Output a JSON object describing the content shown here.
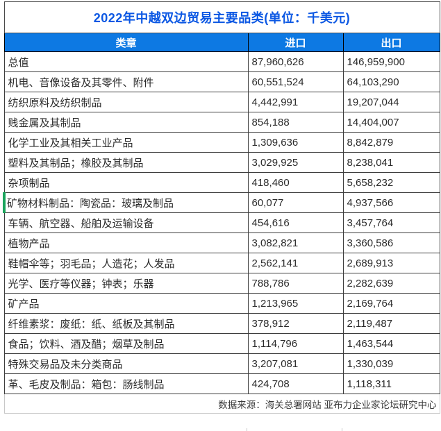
{
  "title": "2022年中越双边贸易主要品类(单位：千美元)",
  "columns": {
    "category": "类章",
    "import": "进口",
    "export": "出口"
  },
  "footer": "数据来源：海关总署网站 亚布力企业家论坛研究中心",
  "colors": {
    "title_text": "#0b57e3",
    "header_bg": "#0d79e3",
    "header_text": "#ffffff",
    "grid_border": "#3d3d3d",
    "marker_green": "#1aa45c"
  },
  "rows": [
    {
      "label": "总值",
      "import": "87,960,626",
      "export": "146,959,900",
      "marked": false
    },
    {
      "label": "机电、音像设备及其零件、附件",
      "import": "60,551,524",
      "export": "64,103,290",
      "marked": false
    },
    {
      "label": "纺织原料及纺织制品",
      "import": "4,442,991",
      "export": "19,207,044",
      "marked": false
    },
    {
      "label": "贱金属及其制品",
      "import": "854,188",
      "export": "14,404,007",
      "marked": false
    },
    {
      "label": "化学工业及其相关工业产品",
      "import": "1,309,636",
      "export": "8,842,879",
      "marked": false
    },
    {
      "label": "塑料及其制品；橡胶及其制品",
      "import": "3,029,925",
      "export": "8,238,041",
      "marked": false
    },
    {
      "label": "杂项制品",
      "import": "418,460",
      "export": "5,658,232",
      "marked": false
    },
    {
      "label": "矿物材料制品：陶瓷品：玻璃及制品",
      "import": "60,077",
      "export": "4,937,566",
      "marked": true
    },
    {
      "label": "车辆、航空器、船舶及运输设备",
      "import": "454,616",
      "export": "3,457,764",
      "marked": false
    },
    {
      "label": "植物产品",
      "import": "3,082,821",
      "export": "3,360,586",
      "marked": false
    },
    {
      "label": "鞋帽伞等；羽毛品；人造花；人发品",
      "import": "2,562,141",
      "export": "2,689,913",
      "marked": false
    },
    {
      "label": "光学、医疗等仪器；钟表；乐器",
      "import": "788,786",
      "export": "2,282,639",
      "marked": false
    },
    {
      "label": "矿产品",
      "import": "1,213,965",
      "export": "2,169,764",
      "marked": false
    },
    {
      "label": "纤维素浆：废纸：纸、纸板及其制品",
      "import": "378,912",
      "export": "2,119,487",
      "marked": false
    },
    {
      "label": "食品；饮料、酒及醋；烟草及制品",
      "import": "1,114,796",
      "export": "1,463,544",
      "marked": false
    },
    {
      "label": "特殊交易品及未分类商品",
      "import": "3,207,081",
      "export": "1,330,039",
      "marked": false
    },
    {
      "label": "革、毛皮及制品：箱包：肠线制品",
      "import": "424,708",
      "export": "1,118,311",
      "marked": false
    }
  ],
  "chart_data": {
    "type": "table",
    "title": "2022年中越双边贸易主要品类(单位：千美元)",
    "unit": "千美元",
    "columns": [
      "类章",
      "进口",
      "出口"
    ],
    "categories": [
      "总值",
      "机电、音像设备及其零件、附件",
      "纺织原料及纺织制品",
      "贱金属及其制品",
      "化学工业及其相关工业产品",
      "塑料及其制品；橡胶及其制品",
      "杂项制品",
      "矿物材料制品：陶瓷品：玻璃及制品",
      "车辆、航空器、船舶及运输设备",
      "植物产品",
      "鞋帽伞等；羽毛品；人造花；人发品",
      "光学、医疗等仪器；钟表；乐器",
      "矿产品",
      "纤维素浆：废纸：纸、纸板及其制品",
      "食品；饮料、酒及醋；烟草及制品",
      "特殊交易品及未分类商品",
      "革、毛皮及制品：箱包：肠线制品"
    ],
    "series": [
      {
        "name": "进口",
        "values": [
          87960626,
          60551524,
          4442991,
          854188,
          1309636,
          3029925,
          418460,
          60077,
          454616,
          3082821,
          2562141,
          788786,
          1213965,
          378912,
          1114796,
          3207081,
          424708
        ]
      },
      {
        "name": "出口",
        "values": [
          146959900,
          64103290,
          19207044,
          14404007,
          8842879,
          8238041,
          5658232,
          4937566,
          3457764,
          3360586,
          2689913,
          2282639,
          2169764,
          2119487,
          1463544,
          1330039,
          1118311
        ]
      }
    ],
    "source": "数据来源：海关总署网站 亚布力企业家论坛研究中心"
  }
}
